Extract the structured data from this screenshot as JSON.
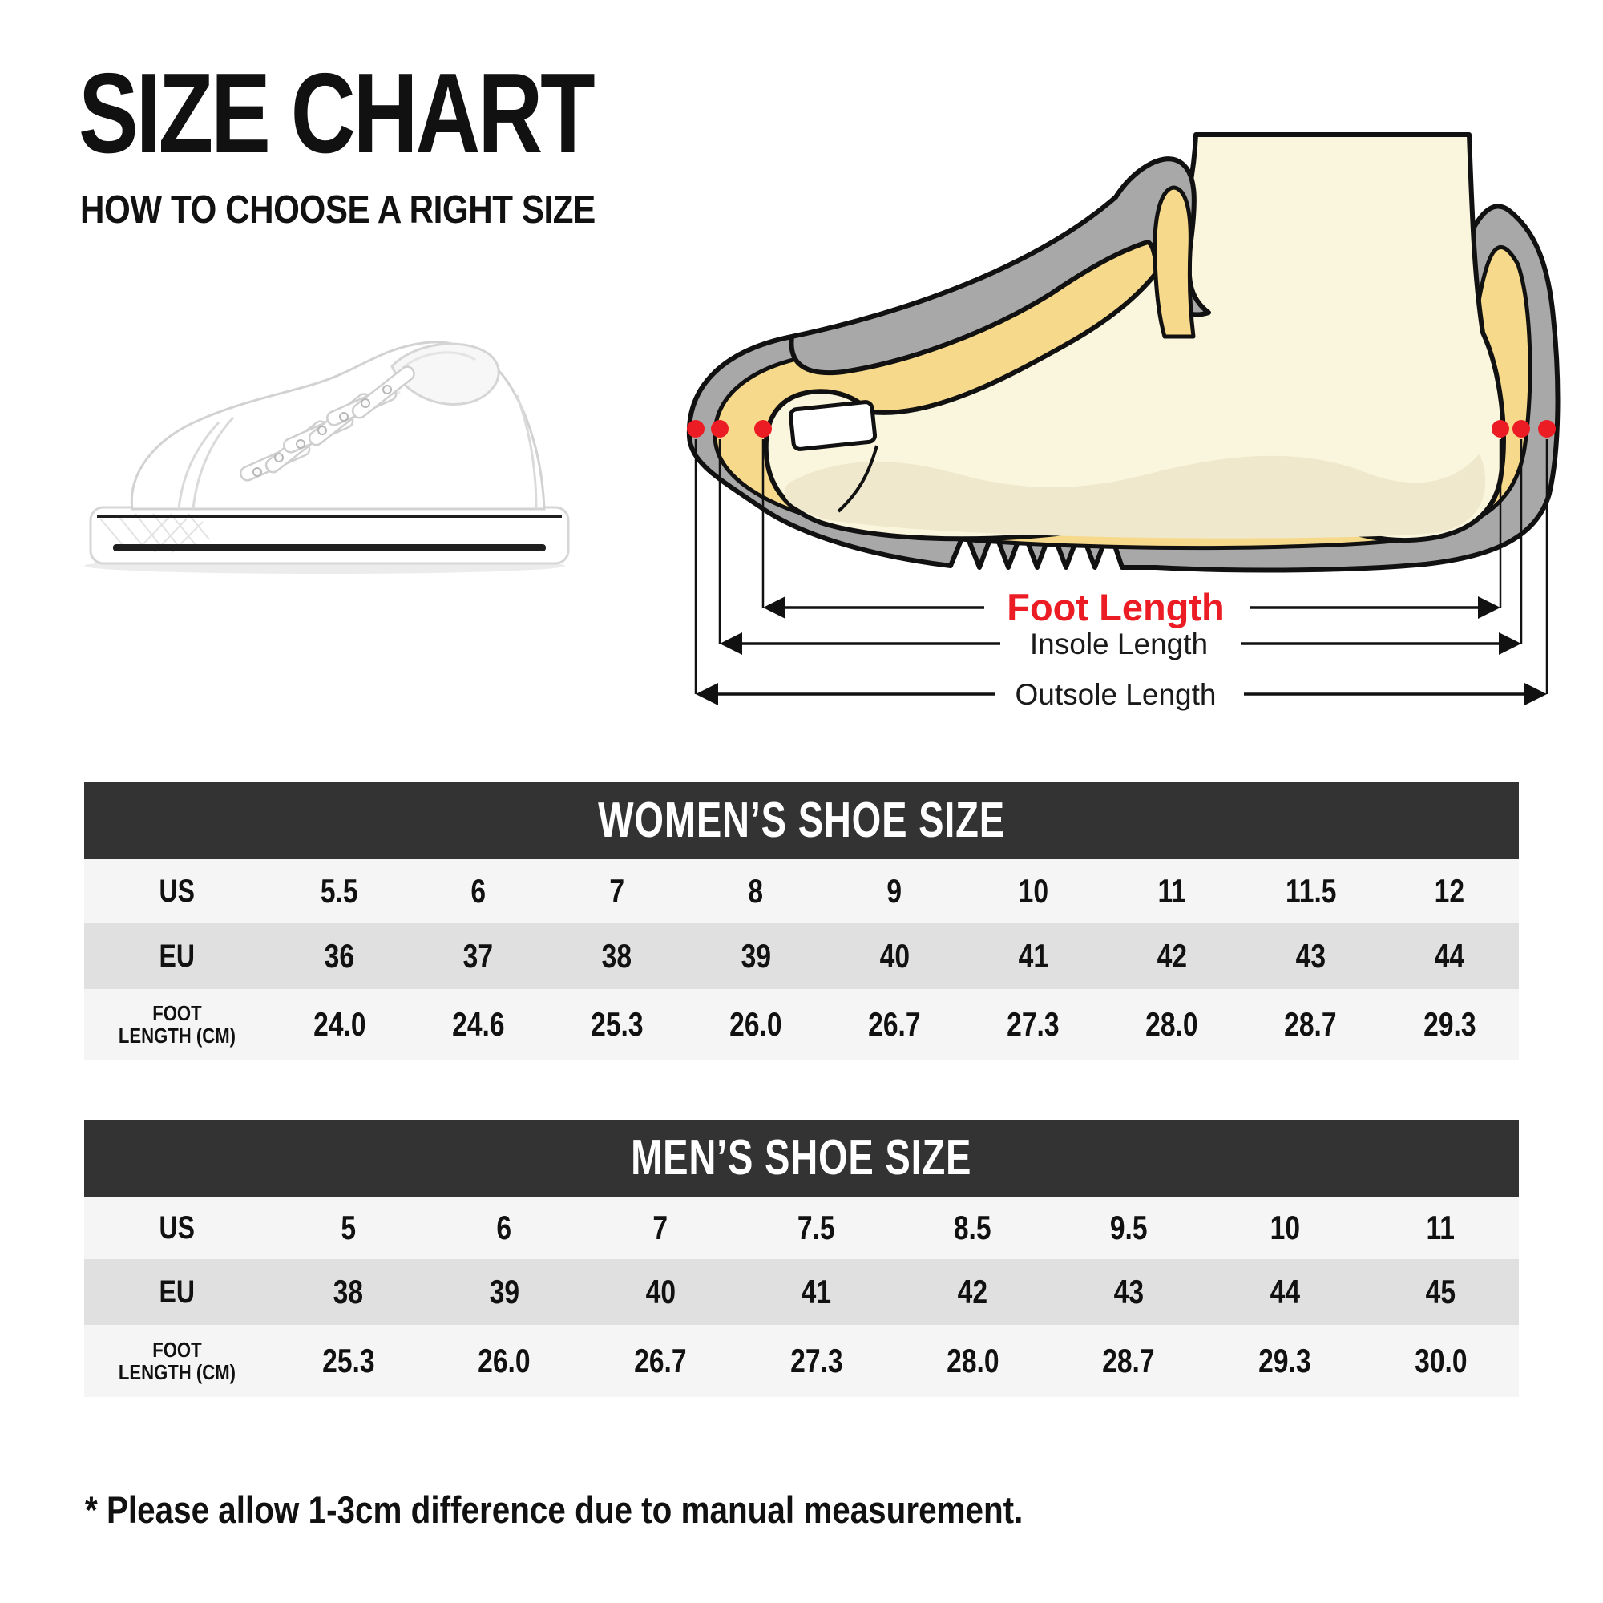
{
  "header": {
    "title": "SIZE CHART",
    "subtitle": "HOW TO CHOOSE A RIGHT SIZE"
  },
  "hero_image": {
    "description": "white low-top canvas sneaker, side view, platform sole with black pinstripes"
  },
  "diagram": {
    "foot_length_label": "Foot Length",
    "insole_length_label": "Insole Length",
    "outsole_length_label": "Outsole Length",
    "colors": {
      "shoe_gray": "#a8a8a8",
      "insole_yellow": "#f6d98b",
      "foot_cream": "#faf6de",
      "foot_shade": "#efe8cc",
      "marker_red": "#ec1c24"
    }
  },
  "tables": [
    {
      "title": "WOMEN’S SHOE SIZE",
      "rows": [
        {
          "label_lines": [
            "US"
          ],
          "values": [
            "5.5",
            "6",
            "7",
            "8",
            "9",
            "10",
            "11",
            "11.5",
            "12"
          ]
        },
        {
          "label_lines": [
            "EU"
          ],
          "values": [
            "36",
            "37",
            "38",
            "39",
            "40",
            "41",
            "42",
            "43",
            "44"
          ]
        },
        {
          "label_lines": [
            "FOOT",
            "LENGTH (CM)"
          ],
          "values": [
            "24.0",
            "24.6",
            "25.3",
            "26.0",
            "26.7",
            "27.3",
            "28.0",
            "28.7",
            "29.3"
          ]
        }
      ]
    },
    {
      "title": "MEN’S SHOE SIZE",
      "rows": [
        {
          "label_lines": [
            "US"
          ],
          "values": [
            "5",
            "6",
            "7",
            "7.5",
            "8.5",
            "9.5",
            "10",
            "11"
          ]
        },
        {
          "label_lines": [
            "EU"
          ],
          "values": [
            "38",
            "39",
            "40",
            "41",
            "42",
            "43",
            "44",
            "45"
          ]
        },
        {
          "label_lines": [
            "FOOT",
            "LENGTH (CM)"
          ],
          "values": [
            "25.3",
            "26.0",
            "26.7",
            "27.3",
            "28.0",
            "28.7",
            "29.3",
            "30.0"
          ]
        }
      ]
    }
  ],
  "footnote": "* Please allow 1-3cm difference due to manual measurement.",
  "colors": {
    "table_header_bg": "#333333",
    "row_light": "#f5f5f5",
    "row_gray": "#e0e0e0",
    "accent_red": "#ec1c24",
    "text": "#111111"
  },
  "chart_data": [
    {
      "type": "table",
      "title": "WOMEN’S SHOE SIZE",
      "row_headers": [
        "US",
        "EU",
        "FOOT LENGTH (CM)"
      ],
      "rows": [
        [
          5.5,
          6,
          7,
          8,
          9,
          10,
          11,
          11.5,
          12
        ],
        [
          36,
          37,
          38,
          39,
          40,
          41,
          42,
          43,
          44
        ],
        [
          24.0,
          24.6,
          25.3,
          26.0,
          26.7,
          27.3,
          28.0,
          28.7,
          29.3
        ]
      ]
    },
    {
      "type": "table",
      "title": "MEN’S SHOE SIZE",
      "row_headers": [
        "US",
        "EU",
        "FOOT LENGTH (CM)"
      ],
      "rows": [
        [
          5,
          6,
          7,
          7.5,
          8.5,
          9.5,
          10,
          11
        ],
        [
          38,
          39,
          40,
          41,
          42,
          43,
          44,
          45
        ],
        [
          25.3,
          26.0,
          26.7,
          27.3,
          28.0,
          28.7,
          29.3,
          30.0
        ]
      ]
    }
  ]
}
